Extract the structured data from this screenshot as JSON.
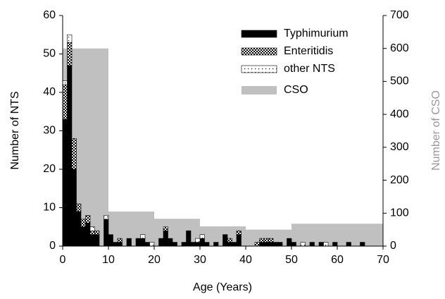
{
  "chart_data": {
    "type": "stacked-histogram",
    "xlabel": "Age (Years)",
    "ylabel": "Number of NTS",
    "y2label": "Number of CSO",
    "xlim": [
      0,
      70
    ],
    "xticks": [
      0,
      10,
      20,
      30,
      40,
      50,
      60,
      70
    ],
    "ylim": [
      0,
      60
    ],
    "yticks": [
      0,
      10,
      20,
      30,
      40,
      50,
      60
    ],
    "y2lim": [
      0,
      700
    ],
    "y2ticks": [
      0,
      100,
      200,
      300,
      400,
      500,
      600,
      700
    ],
    "legend": "upper right",
    "x": [
      0,
      1,
      2,
      3,
      4,
      5,
      6,
      7,
      9,
      10,
      11,
      12,
      14,
      16,
      17,
      18,
      19,
      21,
      22,
      23,
      24,
      26,
      27,
      28,
      29,
      30,
      31,
      33,
      35,
      36,
      37,
      38,
      42,
      43,
      44,
      45,
      46,
      47,
      49,
      50,
      52,
      54,
      56,
      57,
      59,
      62,
      65
    ],
    "series": [
      {
        "name": "Typhimurium",
        "color": "#000000",
        "pattern": "solid",
        "values": [
          33,
          47,
          20,
          9,
          5,
          6,
          3,
          3,
          7,
          3,
          1,
          1,
          2,
          2,
          2,
          1,
          0,
          2,
          4,
          2,
          1,
          1,
          4,
          1,
          1,
          2,
          1,
          1,
          3,
          1,
          1,
          3,
          0,
          1,
          1,
          1,
          1,
          1,
          2,
          1,
          0,
          1,
          1,
          0,
          1,
          1,
          1
        ]
      },
      {
        "name": "Enteritidis",
        "color": "#000000",
        "pattern": "checker",
        "values": [
          9,
          6,
          8,
          2,
          2,
          2,
          1,
          1,
          0,
          0,
          0,
          1,
          0,
          0,
          0,
          0,
          0,
          0,
          1,
          0,
          0,
          0,
          0,
          0,
          0,
          0,
          0,
          0,
          0,
          1,
          0,
          1,
          1,
          1,
          1,
          1,
          0,
          0,
          0,
          0,
          0,
          0,
          0,
          0,
          0,
          0,
          0
        ]
      },
      {
        "name": "other NTS",
        "color": "#000000",
        "pattern": "dots",
        "values": [
          1,
          2,
          0,
          0,
          0,
          0,
          1,
          0,
          1,
          0,
          0,
          0,
          0,
          0,
          1,
          0,
          1,
          0,
          0,
          0,
          0,
          0,
          0,
          0,
          1,
          1,
          0,
          0,
          0,
          0,
          0,
          0,
          0,
          0,
          0,
          0,
          0,
          0,
          0,
          0,
          1,
          0,
          0,
          1,
          0,
          0,
          0
        ]
      },
      {
        "name": "CSO",
        "color": "#c0c0c0",
        "axis": "y2",
        "x": [
          0,
          10,
          20,
          30,
          40,
          50
        ],
        "values": [
          600,
          105,
          83,
          60,
          50,
          68
        ]
      }
    ]
  }
}
